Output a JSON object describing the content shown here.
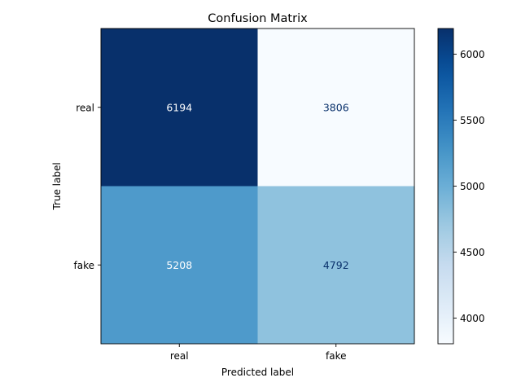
{
  "chart_data": {
    "type": "heatmap",
    "title": "Confusion Matrix",
    "xlabel": "Predicted label",
    "ylabel": "True label",
    "x_categories": [
      "real",
      "fake"
    ],
    "y_categories": [
      "real",
      "fake"
    ],
    "matrix": [
      [
        6194,
        3806
      ],
      [
        5208,
        4792
      ]
    ],
    "colormap": "Blues",
    "color_range": [
      3806,
      6194
    ],
    "colorbar_ticks": [
      4000,
      4500,
      5000,
      5500,
      6000
    ],
    "colorbar_tick_labels": [
      "4000",
      "4500",
      "5000",
      "5500",
      "6000"
    ],
    "text_colors": {
      "on_dark": "#ffffff",
      "on_light": "#08306b"
    },
    "grid": false,
    "legend": "colorbar-right"
  }
}
